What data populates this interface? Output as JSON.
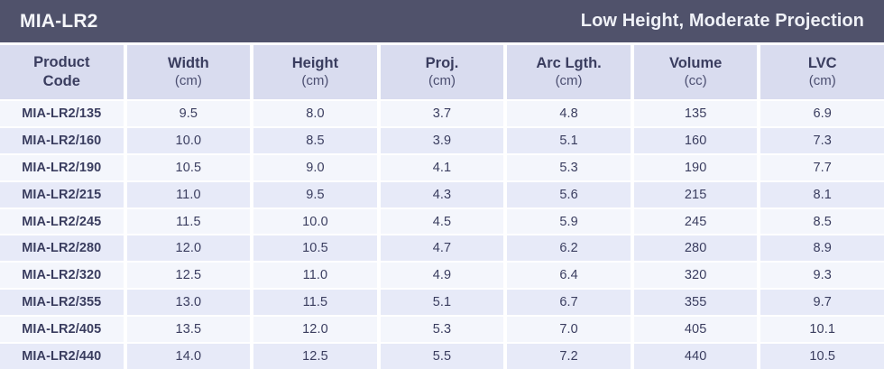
{
  "title_bar": {
    "title": "MIA-LR2",
    "subtitle": "Low Height, Moderate Projection"
  },
  "colors": {
    "title_bar_bg": "#50526B",
    "header_cell_bg": "#D9DCEF",
    "row_light_bg": "#F4F6FC",
    "row_dark_bg": "#E7EAF8",
    "text_navy": "#3A3D5F",
    "title_text": "#F5F6FA"
  },
  "table": {
    "columns": [
      {
        "label": "Product\nCode",
        "unit": ""
      },
      {
        "label": "Width",
        "unit": "(cm)"
      },
      {
        "label": "Height",
        "unit": "(cm)"
      },
      {
        "label": "Proj.",
        "unit": "(cm)"
      },
      {
        "label": "Arc Lgth.",
        "unit": "(cm)"
      },
      {
        "label": "Volume",
        "unit": "(cc)"
      },
      {
        "label": "LVC",
        "unit": "(cm)"
      }
    ],
    "rows": [
      [
        "MIA-LR2/135",
        "9.5",
        "8.0",
        "3.7",
        "4.8",
        "135",
        "6.9"
      ],
      [
        "MIA-LR2/160",
        "10.0",
        "8.5",
        "3.9",
        "5.1",
        "160",
        "7.3"
      ],
      [
        "MIA-LR2/190",
        "10.5",
        "9.0",
        "4.1",
        "5.3",
        "190",
        "7.7"
      ],
      [
        "MIA-LR2/215",
        "11.0",
        "9.5",
        "4.3",
        "5.6",
        "215",
        "8.1"
      ],
      [
        "MIA-LR2/245",
        "11.5",
        "10.0",
        "4.5",
        "5.9",
        "245",
        "8.5"
      ],
      [
        "MIA-LR2/280",
        "12.0",
        "10.5",
        "4.7",
        "6.2",
        "280",
        "8.9"
      ],
      [
        "MIA-LR2/320",
        "12.5",
        "11.0",
        "4.9",
        "6.4",
        "320",
        "9.3"
      ],
      [
        "MIA-LR2/355",
        "13.0",
        "11.5",
        "5.1",
        "6.7",
        "355",
        "9.7"
      ],
      [
        "MIA-LR2/405",
        "13.5",
        "12.0",
        "5.3",
        "7.0",
        "405",
        "10.1"
      ],
      [
        "MIA-LR2/440",
        "14.0",
        "12.5",
        "5.5",
        "7.2",
        "440",
        "10.5"
      ]
    ]
  }
}
